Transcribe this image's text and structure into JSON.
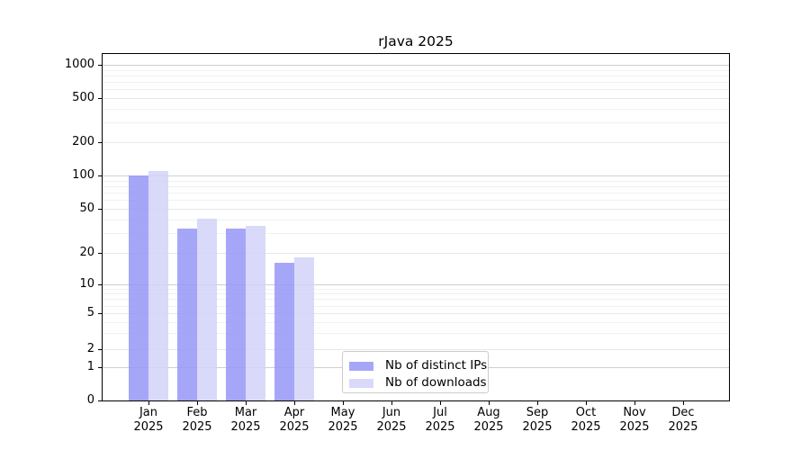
{
  "title": "rJava 2025",
  "legend": {
    "items": [
      {
        "label": "Nb of distinct IPs",
        "color": "rgba(151,151,247,0.85)"
      },
      {
        "label": "Nb of downloads",
        "color": "rgba(210,210,249,0.85)"
      }
    ]
  },
  "chart_data": {
    "type": "bar",
    "title": "rJava 2025",
    "categories": [
      "Jan",
      "Feb",
      "Mar",
      "Apr",
      "May",
      "Jun",
      "Jul",
      "Aug",
      "Sep",
      "Oct",
      "Nov",
      "Dec"
    ],
    "year_label": "2025",
    "series": [
      {
        "name": "Nb of distinct IPs",
        "color": "rgba(151,151,247,0.85)",
        "values": [
          101,
          33,
          33,
          16,
          null,
          null,
          null,
          null,
          null,
          null,
          null,
          null
        ]
      },
      {
        "name": "Nb of downloads",
        "color": "rgba(210,210,249,0.85)",
        "values": [
          110,
          41,
          35,
          18,
          null,
          null,
          null,
          null,
          null,
          null,
          null,
          null
        ]
      }
    ],
    "xlabel": "",
    "ylabel": "",
    "y_scale": "log-like (compressed near zero, includes 0 baseline)",
    "y_ticks": [
      0,
      1,
      2,
      5,
      10,
      20,
      50,
      100,
      200,
      500,
      1000
    ],
    "ylim": [
      0,
      1000
    ],
    "grid": "horizontal log minor + major lines",
    "legend_position": "inside bottom-center-left"
  }
}
